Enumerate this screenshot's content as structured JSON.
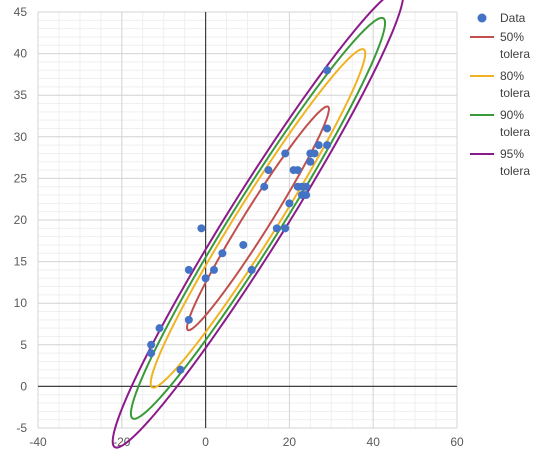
{
  "chart_data": {
    "type": "scatter",
    "title": "",
    "xlabel": "",
    "ylabel": "",
    "xlim": [
      -40,
      60
    ],
    "ylim": [
      -5,
      45
    ],
    "xticks": [
      -40,
      -20,
      0,
      20,
      40,
      60
    ],
    "yticks": [
      -5,
      0,
      5,
      10,
      15,
      20,
      25,
      30,
      35,
      40,
      45
    ],
    "xtick_labels": [
      "-40",
      "-20",
      "0",
      "20",
      "40",
      "60"
    ],
    "ytick_labels": [
      "-5",
      "0",
      "5",
      "10",
      "15",
      "20",
      "25",
      "30",
      "35",
      "40",
      "45"
    ],
    "grid": true,
    "legend_position": "right",
    "points": {
      "name": "Data",
      "color": "#4472C4",
      "x": [
        29,
        29,
        29,
        27,
        26,
        25,
        25,
        19,
        15,
        14,
        22,
        21,
        23,
        22,
        24,
        23,
        24,
        20,
        17,
        19,
        9,
        11,
        4,
        2,
        -1,
        0,
        -4,
        -4,
        -11,
        -13,
        -13,
        -6
      ],
      "y": [
        38,
        31,
        29,
        29,
        28,
        28,
        27,
        28,
        26,
        24,
        26,
        26,
        24,
        24,
        24,
        23,
        23,
        22,
        19,
        19,
        17,
        14,
        16,
        14,
        19,
        13,
        14,
        8,
        7,
        5,
        4,
        2
      ]
    },
    "ellipses": [
      {
        "name": "50% tolera",
        "color": "#C0504D",
        "cx": 12.5,
        "cy": 20.2,
        "a": 21.5,
        "b": 2.3,
        "angle_deg": 38.3
      },
      {
        "name": "80% tolera",
        "color": "#F0B323",
        "cx": 12.5,
        "cy": 20.2,
        "a": 32.5,
        "b": 3.6,
        "angle_deg": 38.3
      },
      {
        "name": "90% tolera",
        "color": "#3A9A3A",
        "cx": 12.5,
        "cy": 20.2,
        "a": 38.5,
        "b": 4.3,
        "angle_deg": 38.3
      },
      {
        "name": "95% tolera",
        "color": "#8B1A8B",
        "cx": 12.5,
        "cy": 20.2,
        "a": 44.0,
        "b": 5.0,
        "angle_deg": 38.3
      }
    ],
    "legend": [
      {
        "label": "Data",
        "label_lines": [
          "Data"
        ],
        "kind": "marker",
        "color": "#4472C4"
      },
      {
        "label": "50% tolera",
        "label_lines": [
          "50%",
          "tolera"
        ],
        "kind": "line",
        "color": "#C0504D"
      },
      {
        "label": "80% tolera",
        "label_lines": [
          "80%",
          "tolera"
        ],
        "kind": "line",
        "color": "#F0B323"
      },
      {
        "label": "90% tolera",
        "label_lines": [
          "90%",
          "tolera"
        ],
        "kind": "line",
        "color": "#3A9A3A"
      },
      {
        "label": "95% tolera",
        "label_lines": [
          "95%",
          "tolera"
        ],
        "kind": "line",
        "color": "#8B1A8B"
      }
    ]
  }
}
